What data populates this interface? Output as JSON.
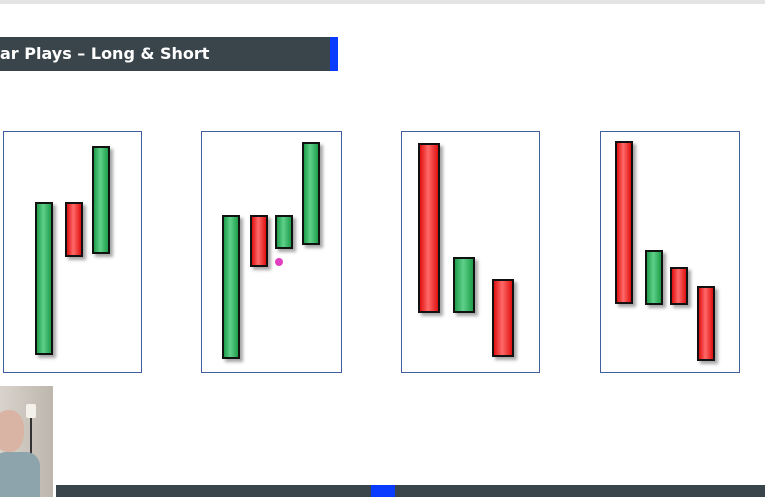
{
  "slide": {
    "title": "ar Plays – Long & Short",
    "colors": {
      "title_bar": "#3a454b",
      "accent": "#0a3cff",
      "bull": "#1e9e4a",
      "bear": "#e01010",
      "panel_border": "#3f5fa0"
    },
    "panels": [
      {
        "candles": [
          "green",
          "red",
          "green"
        ]
      },
      {
        "candles": [
          "green",
          "red",
          "green",
          "green"
        ]
      },
      {
        "candles": [
          "red",
          "green",
          "red"
        ]
      },
      {
        "candles": [
          "red",
          "green",
          "red",
          "red"
        ]
      }
    ]
  },
  "webcam": {
    "icon": "presenter-webcam-feed"
  },
  "player": {
    "progress_percent": 45
  }
}
